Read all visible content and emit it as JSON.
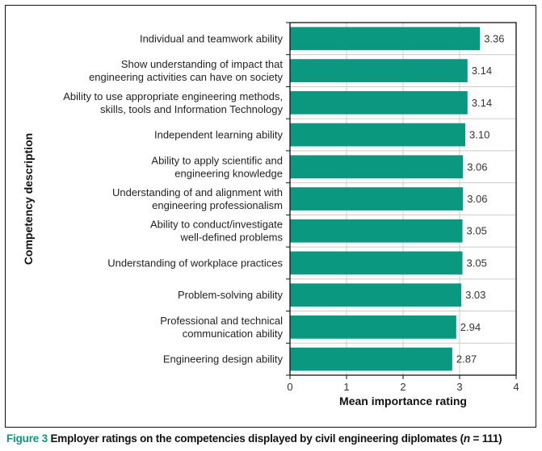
{
  "chart_data": {
    "type": "bar",
    "orientation": "horizontal",
    "categories": [
      "Individual and teamwork ability",
      "Show understanding of impact that\nengineering activities can have on society",
      "Ability to use appropriate engineering methods,\nskills, tools and Information Technology",
      "Independent learning ability",
      "Ability to apply scientific and\nengineering knowledge",
      "Understanding of and alignment with\nengineering professionalism",
      "Ability to conduct/investigate\nwell-defined problems",
      "Understanding of workplace practices",
      "Problem-solving ability",
      "Professional and technical\ncommunication ability",
      "Engineering design ability"
    ],
    "values": [
      3.36,
      3.14,
      3.14,
      3.1,
      3.06,
      3.06,
      3.05,
      3.05,
      3.03,
      2.94,
      2.87
    ],
    "data_labels": [
      "3.36",
      "3.14",
      "3.14",
      "3.10",
      "3.06",
      "3.06",
      "3.05",
      "3.05",
      "3.03",
      "2.94",
      "2.87"
    ],
    "xlabel": "Mean importance rating",
    "ylabel": "Competency description",
    "xlim": [
      0,
      4
    ],
    "xticks": [
      "0",
      "1",
      "2",
      "3",
      "4"
    ],
    "grid": true,
    "bar_color": "#0a9980"
  },
  "caption": {
    "figure_label": "Figure 3",
    "text": "Employer ratings on the competencies displayed by civil engineering diplomates (",
    "n_symbol": "n",
    "n_text": " = 111)"
  }
}
